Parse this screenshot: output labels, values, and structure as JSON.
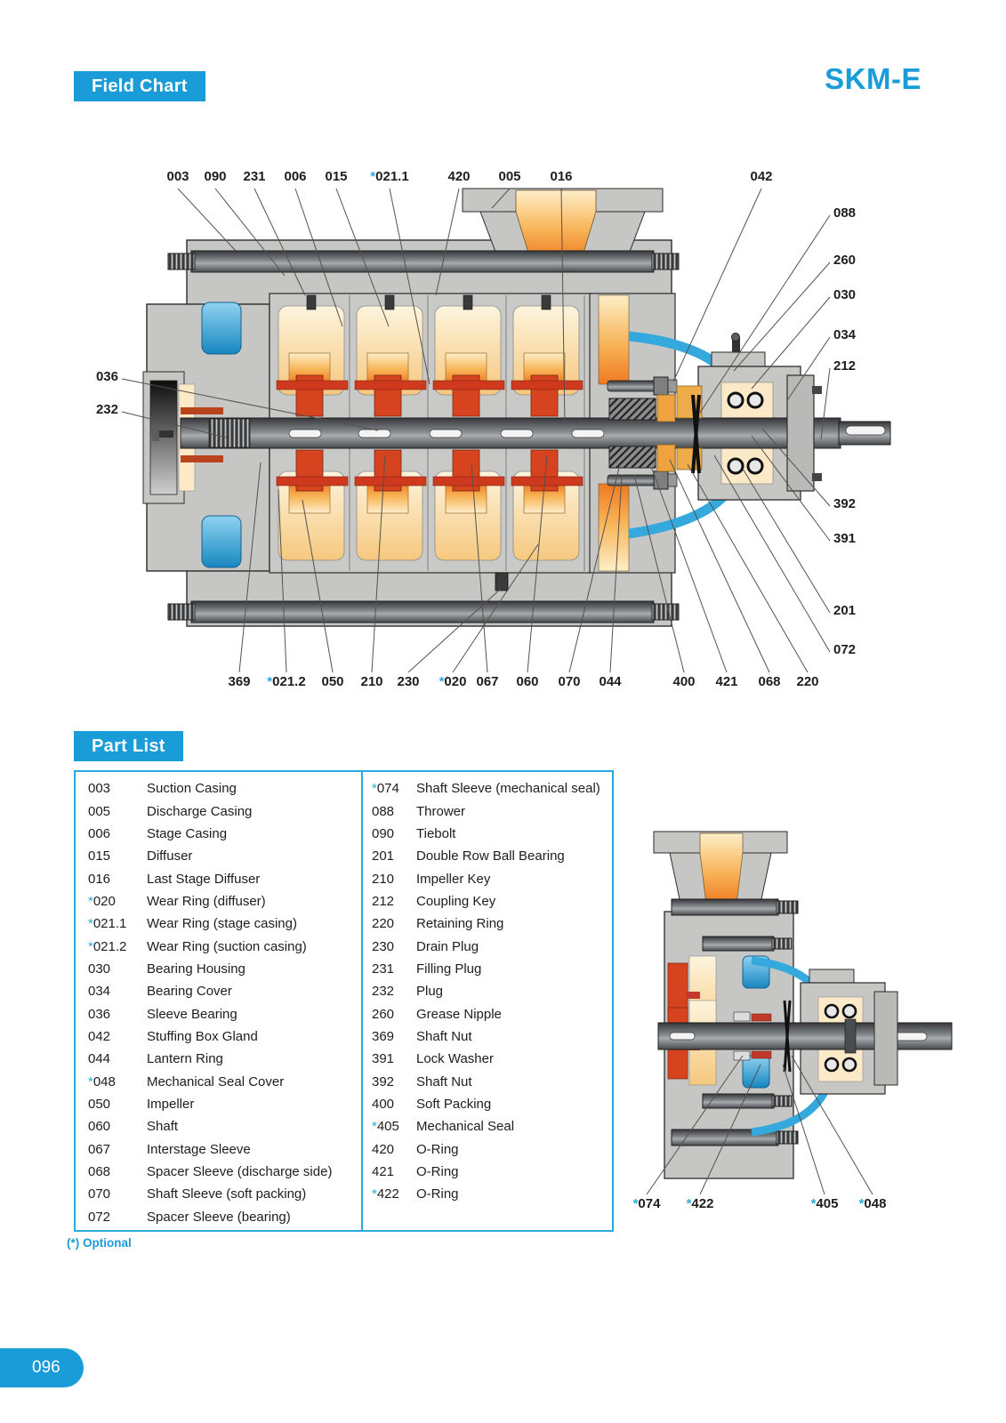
{
  "header": {
    "field_chart_label": "Field Chart",
    "model": "SKM-E"
  },
  "diagram": {
    "callouts_top": [
      "003",
      "090",
      "231",
      "006",
      "015",
      "*021.1",
      "420",
      "005",
      "016",
      "042"
    ],
    "callouts_right": [
      "088",
      "260",
      "030",
      "034",
      "212",
      "392",
      "391",
      "201",
      "072"
    ],
    "callouts_left": [
      "036",
      "232"
    ],
    "callouts_bottom": [
      "369",
      "*021.2",
      "050",
      "210",
      "230",
      "*020",
      "067",
      "060",
      "070",
      "044",
      "400",
      "421",
      "068",
      "220"
    ],
    "detail_callouts": [
      "*074",
      "*422",
      "*405",
      "*048"
    ]
  },
  "part_list": {
    "title": "Part List",
    "optional_note": "(*) Optional",
    "left": [
      [
        "003",
        "Suction Casing"
      ],
      [
        "005",
        "Discharge Casing"
      ],
      [
        "006",
        "Stage Casing"
      ],
      [
        "015",
        "Diffuser"
      ],
      [
        "016",
        "Last Stage Diffuser"
      ],
      [
        "*020",
        "Wear Ring (diffuser)"
      ],
      [
        "*021.1",
        "Wear Ring (stage casing)"
      ],
      [
        "*021.2",
        "Wear Ring (suction casing)"
      ],
      [
        "030",
        "Bearing Housing"
      ],
      [
        "034",
        "Bearing Cover"
      ],
      [
        "036",
        "Sleeve Bearing"
      ],
      [
        "042",
        "Stuffing Box Gland"
      ],
      [
        "044",
        "Lantern Ring"
      ],
      [
        "*048",
        "Mechanical Seal Cover"
      ],
      [
        "050",
        "Impeller"
      ],
      [
        "060",
        "Shaft"
      ],
      [
        "067",
        "Interstage Sleeve"
      ],
      [
        "068",
        "Spacer Sleeve (discharge side)"
      ],
      [
        "070",
        "Shaft Sleeve (soft packing)"
      ],
      [
        "072",
        "Spacer Sleeve (bearing)"
      ]
    ],
    "right": [
      [
        "*074",
        "Shaft Sleeve (mechanical seal)"
      ],
      [
        "088",
        "Thrower"
      ],
      [
        "090",
        "Tiebolt"
      ],
      [
        "201",
        "Double Row Ball Bearing"
      ],
      [
        "210",
        "Impeller Key"
      ],
      [
        "212",
        "Coupling Key"
      ],
      [
        "220",
        "Retaining Ring"
      ],
      [
        "230",
        "Drain Plug"
      ],
      [
        "231",
        "Filling Plug"
      ],
      [
        "232",
        "Plug"
      ],
      [
        "260",
        "Grease Nipple"
      ],
      [
        "369",
        "Shaft Nut"
      ],
      [
        "391",
        "Lock Washer"
      ],
      [
        "392",
        "Shaft Nut"
      ],
      [
        "400",
        "Soft Packing"
      ],
      [
        "*405",
        "Mechanical Seal"
      ],
      [
        "420",
        "O-Ring"
      ],
      [
        "421",
        "O-Ring"
      ],
      [
        "*422",
        "O-Ring"
      ]
    ]
  },
  "footer": {
    "page_number": "096"
  },
  "colors": {
    "accent_blue": "#1a9cd8",
    "table_border": "#2aa9e0",
    "asterisk_blue": "#2aa9e0",
    "text": "#1d1d1b"
  }
}
